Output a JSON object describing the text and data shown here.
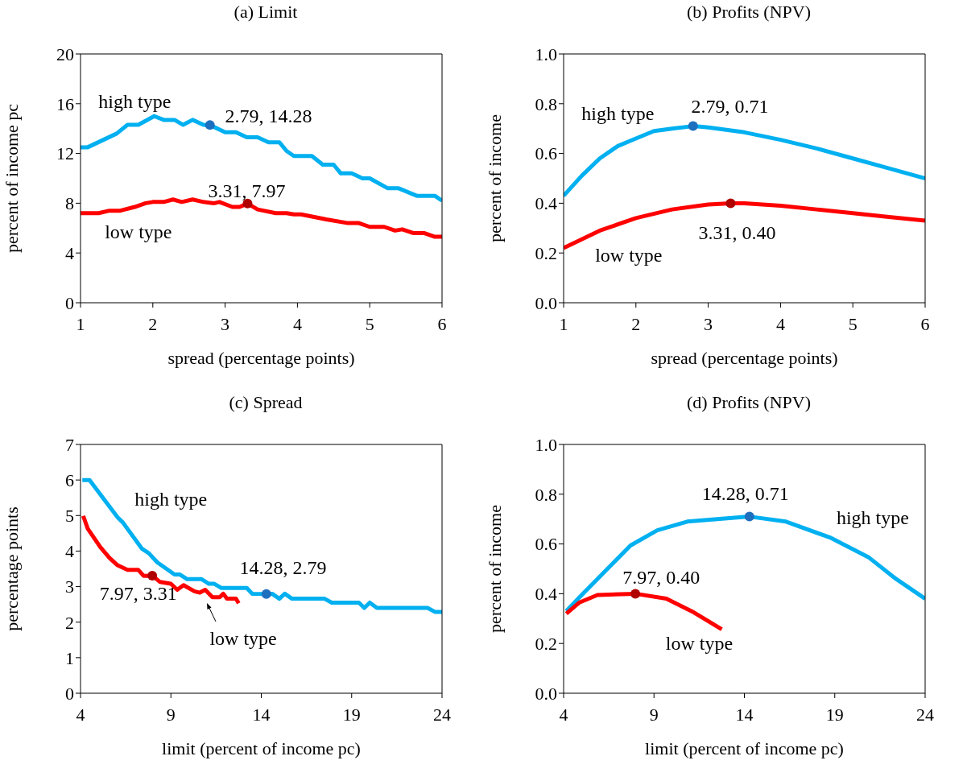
{
  "chart_data": [
    {
      "type": "line",
      "title": "(a) Limit",
      "xlabel": "spread (percentage points)",
      "ylabel": "percent of income pc",
      "xlim": [
        1,
        6
      ],
      "xticks": [
        1,
        2,
        3,
        4,
        5,
        6
      ],
      "ylim": [
        0,
        20
      ],
      "yticks": [
        0,
        4,
        8,
        12,
        16,
        20
      ],
      "series": [
        {
          "color": "#00b0f0",
          "x": [
            1,
            1.1,
            1.5,
            1.65,
            1.8,
            2.02,
            2.15,
            2.3,
            2.42,
            2.55,
            2.7,
            2.79,
            3.0,
            3.15,
            3.3,
            3.45,
            3.6,
            3.75,
            3.85,
            3.95,
            4.2,
            4.35,
            4.5,
            4.6,
            4.75,
            4.9,
            5.0,
            5.25,
            5.4,
            5.65,
            5.9,
            6
          ],
          "values": [
            12.5,
            12.5,
            13.6,
            14.3,
            14.3,
            15.0,
            14.7,
            14.7,
            14.3,
            14.7,
            14.3,
            14.28,
            13.7,
            13.7,
            13.3,
            13.3,
            12.9,
            12.9,
            12.2,
            11.8,
            11.8,
            11.1,
            11.1,
            10.4,
            10.4,
            10.0,
            10.0,
            9.2,
            9.2,
            8.6,
            8.6,
            8.2
          ]
        },
        {
          "color": "#ff0000",
          "x": [
            1,
            1.25,
            1.4,
            1.55,
            1.75,
            1.9,
            2.0,
            2.15,
            2.28,
            2.4,
            2.55,
            2.7,
            2.85,
            2.92,
            3.1,
            3.2,
            3.31,
            3.45,
            3.7,
            3.85,
            3.95,
            4.05,
            4.4,
            4.7,
            4.85,
            5.0,
            5.2,
            5.35,
            5.45,
            5.6,
            5.75,
            5.9,
            6
          ],
          "values": [
            7.2,
            7.2,
            7.4,
            7.4,
            7.7,
            8.0,
            8.1,
            8.1,
            8.3,
            8.1,
            8.3,
            8.1,
            8.0,
            8.1,
            7.7,
            7.7,
            7.97,
            7.5,
            7.2,
            7.2,
            7.1,
            7.1,
            6.7,
            6.4,
            6.4,
            6.1,
            6.1,
            5.8,
            5.9,
            5.6,
            5.6,
            5.3,
            5.3
          ]
        },
        {
          "type": "scatter",
          "color": "#1f6fbf",
          "x": [
            2.79
          ],
          "values": [
            14.28
          ]
        },
        {
          "type": "scatter",
          "color": "#b00000",
          "x": [
            3.31
          ],
          "values": [
            7.97
          ]
        }
      ],
      "annotations": [
        "high type",
        "2.79, 14.28",
        "3.31, 7.97",
        "low type"
      ]
    },
    {
      "type": "line",
      "title": "(b) Profits (NPV)",
      "xlabel": "spread (percentage points)",
      "ylabel": "percent of income",
      "xlim": [
        1,
        6
      ],
      "xticks": [
        1,
        2,
        3,
        4,
        5,
        6
      ],
      "ylim": [
        0,
        1
      ],
      "yticks": [
        {
          "value": 0,
          "label": "0.0"
        },
        {
          "value": 0.2,
          "label": "0.2"
        },
        {
          "value": 0.4,
          "label": "0.4"
        },
        {
          "value": 0.6,
          "label": "0.6"
        },
        {
          "value": 0.8,
          "label": "0.8"
        },
        {
          "value": 1,
          "label": "1.0"
        }
      ],
      "series": [
        {
          "color": "#00b0f0",
          "x": [
            1,
            1.25,
            1.5,
            1.75,
            2,
            2.25,
            2.5,
            2.79,
            3,
            3.5,
            4,
            4.5,
            5,
            5.5,
            6
          ],
          "values": [
            0.43,
            0.51,
            0.58,
            0.63,
            0.66,
            0.69,
            0.7,
            0.71,
            0.705,
            0.685,
            0.655,
            0.62,
            0.58,
            0.54,
            0.5
          ]
        },
        {
          "color": "#ff0000",
          "x": [
            1,
            1.5,
            2,
            2.5,
            3,
            3.31,
            3.5,
            4,
            4.5,
            5,
            5.5,
            6
          ],
          "values": [
            0.22,
            0.29,
            0.34,
            0.375,
            0.395,
            0.4,
            0.4,
            0.39,
            0.375,
            0.36,
            0.345,
            0.33
          ]
        },
        {
          "type": "scatter",
          "color": "#1f6fbf",
          "x": [
            2.79
          ],
          "values": [
            0.71
          ]
        },
        {
          "type": "scatter",
          "color": "#b00000",
          "x": [
            3.31
          ],
          "values": [
            0.4
          ]
        }
      ],
      "annotations": [
        "high type",
        "2.79, 0.71",
        "3.31, 0.40",
        "low type"
      ]
    },
    {
      "type": "line",
      "title": "(c) Spread",
      "xlabel": "limit (percent of income pc)",
      "ylabel": "percentage points",
      "xlim": [
        4,
        24
      ],
      "xticks": [
        4,
        9,
        14,
        19,
        24
      ],
      "ylim": [
        0,
        7
      ],
      "yticks": [
        0,
        1,
        2,
        3,
        4,
        5,
        6,
        7
      ],
      "series": [
        {
          "color": "#00b0f0",
          "x": [
            4.1,
            4.5,
            6.05,
            6.35,
            7.39,
            7.78,
            8.25,
            9.2,
            9.5,
            9.9,
            10.7,
            11.1,
            11.4,
            11.8,
            13.2,
            13.5,
            14.28,
            14.6,
            15.0,
            15.3,
            15.7,
            17.5,
            17.9,
            19.4,
            19.7,
            20.0,
            20.4,
            23.2,
            23.6,
            24
          ],
          "values": [
            6.0,
            6.0,
            4.95,
            4.8,
            4.07,
            3.94,
            3.68,
            3.34,
            3.34,
            3.21,
            3.21,
            3.08,
            3.08,
            2.96,
            2.96,
            2.8,
            2.79,
            2.8,
            2.66,
            2.8,
            2.66,
            2.66,
            2.55,
            2.55,
            2.4,
            2.55,
            2.4,
            2.4,
            2.29,
            2.29
          ]
        },
        {
          "color": "#ff0000",
          "x": [
            4.15,
            4.4,
            5.1,
            5.6,
            6.05,
            6.6,
            7.2,
            7.5,
            7.97,
            8.4,
            9.0,
            9.35,
            9.7,
            10.3,
            10.6,
            10.9,
            11.3,
            11.7,
            11.9,
            12.1,
            12.6,
            12.75
          ],
          "values": [
            4.99,
            4.63,
            4.11,
            3.81,
            3.6,
            3.47,
            3.47,
            3.3,
            3.31,
            3.13,
            3.08,
            2.91,
            3.04,
            2.87,
            2.83,
            2.91,
            2.7,
            2.7,
            2.8,
            2.66,
            2.66,
            2.53
          ]
        },
        {
          "type": "scatter",
          "color": "#1f6fbf",
          "x": [
            14.28
          ],
          "values": [
            2.79
          ]
        },
        {
          "type": "scatter",
          "color": "#b00000",
          "x": [
            7.97
          ],
          "values": [
            3.31
          ]
        }
      ],
      "annotations": [
        "high type",
        "14.28, 2.79",
        "7.97, 3.31",
        "low type"
      ]
    },
    {
      "type": "line",
      "title": "(d) Profits (NPV)",
      "xlabel": "limit (percent of income pc)",
      "ylabel": "percent of income",
      "xlim": [
        4,
        24
      ],
      "xticks": [
        4,
        9,
        14,
        19,
        24
      ],
      "ylim": [
        0,
        1
      ],
      "yticks": [
        {
          "value": 0,
          "label": "0.0"
        },
        {
          "value": 0.2,
          "label": "0.2"
        },
        {
          "value": 0.4,
          "label": "0.4"
        },
        {
          "value": 0.6,
          "label": "0.6"
        },
        {
          "value": 0.8,
          "label": "0.8"
        },
        {
          "value": 1,
          "label": "1.0"
        }
      ],
      "series": [
        {
          "color": "#00b0f0",
          "x": [
            4.15,
            4.88,
            6.37,
            7.7,
            9.18,
            10.84,
            14.28,
            16.3,
            18.8,
            20.9,
            22.4,
            24
          ],
          "values": [
            0.33,
            0.386,
            0.496,
            0.594,
            0.655,
            0.69,
            0.71,
            0.69,
            0.624,
            0.545,
            0.459,
            0.38
          ]
        },
        {
          "color": "#ff0000",
          "x": [
            4.15,
            4.88,
            5.87,
            7.97,
            9.68,
            11.2,
            12.75
          ],
          "values": [
            0.32,
            0.365,
            0.395,
            0.4,
            0.38,
            0.325,
            0.257
          ]
        },
        {
          "type": "scatter",
          "color": "#1f6fbf",
          "x": [
            14.28
          ],
          "values": [
            0.71
          ]
        },
        {
          "type": "scatter",
          "color": "#b00000",
          "x": [
            7.97
          ],
          "values": [
            0.4
          ]
        }
      ],
      "annotations": [
        "14.28, 0.71",
        "high type",
        "7.97, 0.40",
        "low type"
      ]
    }
  ]
}
